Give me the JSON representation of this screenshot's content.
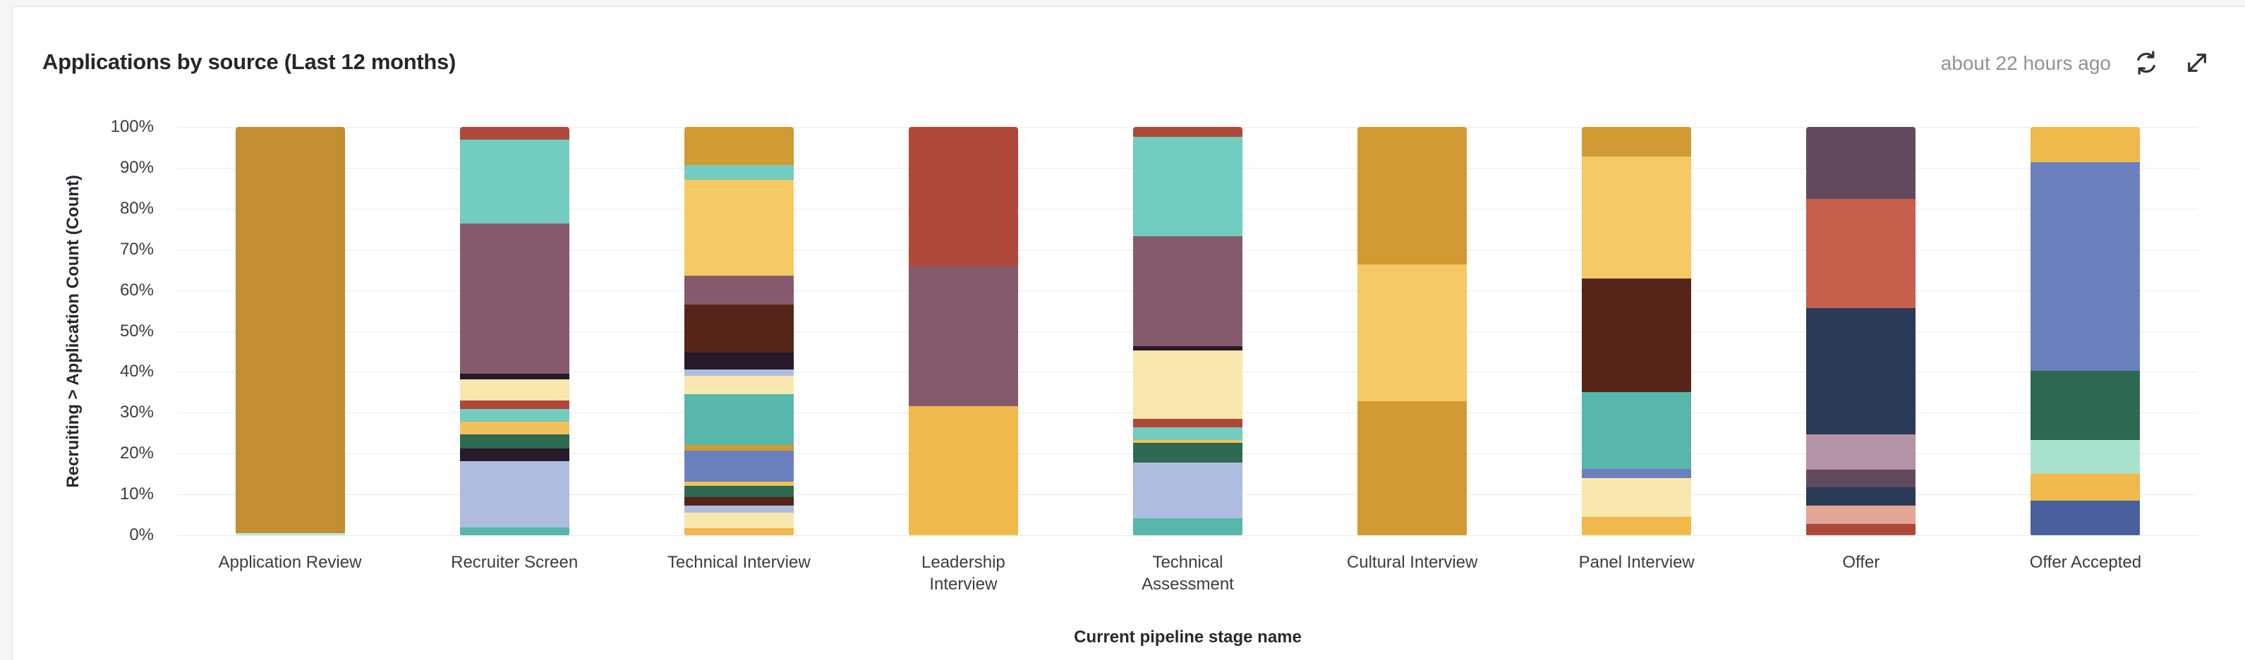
{
  "page": {
    "background": "#f5f5f6",
    "card_background": "#ffffff",
    "card_border": "#dedede"
  },
  "header": {
    "title": "Applications by source (Last 12 months)",
    "last_updated": "about 22 hours ago",
    "refresh_icon": "refresh-circular-arrows",
    "expand_icon": "expand-diagonal-arrows"
  },
  "chart_data": {
    "type": "bar",
    "stacked": true,
    "normalized": "percent",
    "title": "Applications by source (Last 12 months)",
    "xlabel": "Current pipeline stage name",
    "ylabel": "Recruiting > Application Count (Count)",
    "ylim": [
      0,
      100
    ],
    "y_ticks": [
      "100%",
      "90%",
      "80%",
      "70%",
      "60%",
      "50%",
      "40%",
      "30%",
      "20%",
      "10%",
      "0%"
    ],
    "grid": "horizontal",
    "legend": "none",
    "gridline_color": "#ececec",
    "categories": [
      "Application Review",
      "Recruiter Screen",
      "Technical Interview",
      "Leadership Interview",
      "Technical Assessment",
      "Cultural Interview",
      "Panel Interview",
      "Offer",
      "Offer Accepted"
    ],
    "category_display": [
      "Application Review",
      "Recruiter Screen",
      "Technical Interview",
      "Leadership\nInterview",
      "Technical\nAssessment",
      "Cultural Interview",
      "Panel Interview",
      "Offer",
      "Offer Accepted"
    ],
    "bars": [
      {
        "category": "Application Review",
        "segments": [
          {
            "color": "#C18E30",
            "pct": 99.4
          },
          {
            "color": "#BFE6D6",
            "pct": 0.6
          }
        ]
      },
      {
        "category": "Recruiter Screen",
        "segments": [
          {
            "color": "#B0483A",
            "pct": 3.1
          },
          {
            "color": "#72CCC0",
            "pct": 20.5
          },
          {
            "color": "#855A6D",
            "pct": 36.8
          },
          {
            "color": "#261A2B",
            "pct": 1.4
          },
          {
            "color": "#F8E7AE",
            "pct": 5.2
          },
          {
            "color": "#B0483A",
            "pct": 2.1
          },
          {
            "color": "#72CCC0",
            "pct": 3.1
          },
          {
            "color": "#F3C159",
            "pct": 3.1
          },
          {
            "color": "#2E6951",
            "pct": 3.5
          },
          {
            "color": "#261A2B",
            "pct": 3.1
          },
          {
            "color": "#AEBCDF",
            "pct": 16.3
          },
          {
            "color": "#57B7AA",
            "pct": 1.8
          }
        ]
      },
      {
        "category": "Technical Interview",
        "segments": [
          {
            "color": "#D29A33",
            "pct": 9.4
          },
          {
            "color": "#72CCC0",
            "pct": 3.5
          },
          {
            "color": "#F5C963",
            "pct": 23.6
          },
          {
            "color": "#855A6D",
            "pct": 7.0
          },
          {
            "color": "#562419",
            "pct": 11.8
          },
          {
            "color": "#261A2B",
            "pct": 4.2
          },
          {
            "color": "#AEBCDF",
            "pct": 1.4
          },
          {
            "color": "#F8E7AE",
            "pct": 4.5
          },
          {
            "color": "#57B7AA",
            "pct": 12.5
          },
          {
            "color": "#D29A33",
            "pct": 1.4
          },
          {
            "color": "#6B80BE",
            "pct": 7.6
          },
          {
            "color": "#F3C159",
            "pct": 1.0
          },
          {
            "color": "#2E6951",
            "pct": 2.8
          },
          {
            "color": "#562419",
            "pct": 2.1
          },
          {
            "color": "#AEBCDF",
            "pct": 1.7
          },
          {
            "color": "#F8E7AE",
            "pct": 3.8
          },
          {
            "color": "#EFB94C",
            "pct": 1.7
          }
        ]
      },
      {
        "category": "Leadership Interview",
        "segments": [
          {
            "color": "#B0483A",
            "pct": 34.0
          },
          {
            "color": "#855A6D",
            "pct": 34.4
          },
          {
            "color": "#EFB94C",
            "pct": 31.6
          }
        ]
      },
      {
        "category": "Technical Assessment",
        "segments": [
          {
            "color": "#B0483A",
            "pct": 2.4
          },
          {
            "color": "#72CCC0",
            "pct": 24.3
          },
          {
            "color": "#855A6D",
            "pct": 27.1
          },
          {
            "color": "#261A2B",
            "pct": 1.0
          },
          {
            "color": "#F8E7AE",
            "pct": 16.7
          },
          {
            "color": "#B0483A",
            "pct": 2.1
          },
          {
            "color": "#72CCC0",
            "pct": 3.1
          },
          {
            "color": "#F3C159",
            "pct": 0.7
          },
          {
            "color": "#2E6951",
            "pct": 4.9
          },
          {
            "color": "#AEBCDF",
            "pct": 13.5
          },
          {
            "color": "#57B7AA",
            "pct": 4.2
          }
        ]
      },
      {
        "category": "Cultural Interview",
        "segments": [
          {
            "color": "#D29A33",
            "pct": 33.6
          },
          {
            "color": "#F5C963",
            "pct": 33.6
          },
          {
            "color": "#D29A33",
            "pct": 32.8
          }
        ]
      },
      {
        "category": "Panel Interview",
        "segments": [
          {
            "color": "#D29A33",
            "pct": 7.3
          },
          {
            "color": "#F5C963",
            "pct": 29.9
          },
          {
            "color": "#562419",
            "pct": 27.8
          },
          {
            "color": "#57B7AA",
            "pct": 18.7
          },
          {
            "color": "#6B80BE",
            "pct": 2.4
          },
          {
            "color": "#F8E7AE",
            "pct": 9.4
          },
          {
            "color": "#EFB94C",
            "pct": 4.5
          }
        ]
      },
      {
        "category": "Offer",
        "segments": [
          {
            "color": "#614A5E",
            "pct": 17.7
          },
          {
            "color": "#C65F4C",
            "pct": 26.7
          },
          {
            "color": "#2A3A57",
            "pct": 30.9
          },
          {
            "color": "#B494A6",
            "pct": 8.7
          },
          {
            "color": "#614A5E",
            "pct": 4.2
          },
          {
            "color": "#2A3A57",
            "pct": 4.5
          },
          {
            "color": "#E2A697",
            "pct": 4.5
          },
          {
            "color": "#B0483A",
            "pct": 2.8
          }
        ]
      },
      {
        "category": "Offer Accepted",
        "segments": [
          {
            "color": "#EFB94C",
            "pct": 8.7
          },
          {
            "color": "#6B80BE",
            "pct": 51.0
          },
          {
            "color": "#2E6951",
            "pct": 17.0
          },
          {
            "color": "#A9E2CC",
            "pct": 8.3
          },
          {
            "color": "#EFB94C",
            "pct": 6.6
          },
          {
            "color": "#48619E",
            "pct": 8.4
          }
        ]
      }
    ]
  }
}
